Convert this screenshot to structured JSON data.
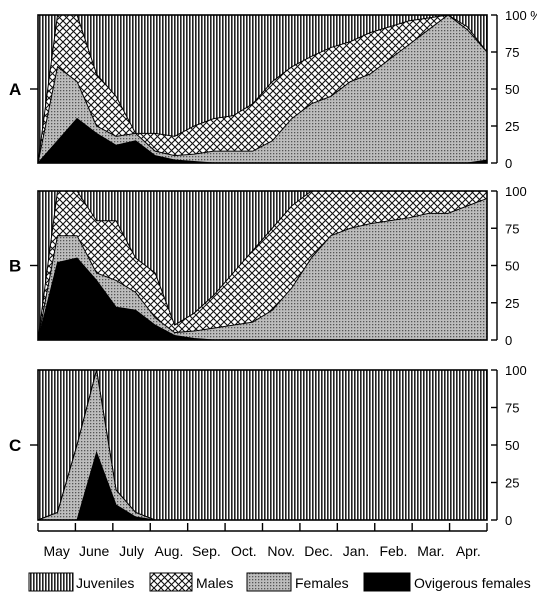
{
  "chart_data": [
    {
      "panel": "A",
      "type": "area",
      "stacked": true,
      "x": [
        "May",
        "",
        "June",
        "",
        "July",
        "",
        "Aug.",
        "",
        "Sep.",
        "",
        "Oct.",
        "",
        "Nov.",
        "",
        "Dec.",
        "",
        "Jan.",
        "",
        "Feb.",
        "",
        "Mar.",
        "",
        "Apr.",
        ""
      ],
      "series": [
        {
          "name": "Ovigerous females",
          "values": [
            0,
            15,
            30,
            20,
            12,
            15,
            5,
            2,
            1,
            0,
            0,
            0,
            0,
            0,
            0,
            0,
            0,
            0,
            0,
            0,
            0,
            0,
            0,
            2
          ]
        },
        {
          "name": "Females",
          "values": [
            0,
            65,
            55,
            25,
            18,
            20,
            8,
            5,
            6,
            8,
            8,
            8,
            15,
            30,
            40,
            45,
            55,
            60,
            70,
            80,
            90,
            100,
            90,
            75
          ]
        },
        {
          "name": "Males",
          "values": [
            0,
            100,
            100,
            60,
            45,
            20,
            20,
            18,
            25,
            30,
            32,
            40,
            55,
            65,
            72,
            78,
            82,
            88,
            92,
            96,
            98,
            100,
            92,
            75
          ]
        }
      ],
      "ylim": [
        0,
        100
      ],
      "yticks": [
        0,
        25,
        50,
        75,
        100
      ],
      "ytick_labels": [
        "0",
        "25",
        "50",
        "75",
        "100 %"
      ]
    },
    {
      "panel": "B",
      "type": "area",
      "stacked": true,
      "x": [
        "May",
        "",
        "June",
        "",
        "July",
        "",
        "Aug.",
        "",
        "Sep.",
        "",
        "Oct.",
        "",
        "Nov.",
        "",
        "Dec.",
        "",
        "Jan.",
        "",
        "Feb.",
        "",
        "Mar.",
        "",
        "Apr.",
        ""
      ],
      "series": [
        {
          "name": "Ovigerous females",
          "values": [
            0,
            52,
            55,
            40,
            22,
            20,
            10,
            3,
            1,
            0,
            0,
            0,
            0,
            0,
            0,
            0,
            0,
            0,
            0,
            0,
            0,
            0,
            0,
            0
          ]
        },
        {
          "name": "Females",
          "values": [
            0,
            70,
            70,
            45,
            40,
            32,
            15,
            5,
            6,
            8,
            10,
            12,
            20,
            35,
            55,
            70,
            75,
            78,
            80,
            82,
            85,
            85,
            90,
            95
          ]
        },
        {
          "name": "Males",
          "values": [
            0,
            100,
            100,
            80,
            80,
            55,
            45,
            10,
            18,
            30,
            45,
            60,
            75,
            90,
            100,
            100,
            100,
            100,
            100,
            100,
            100,
            100,
            100,
            100
          ]
        }
      ],
      "ylim": [
        0,
        100
      ],
      "yticks": [
        0,
        25,
        50,
        75,
        100
      ],
      "ytick_labels": [
        "0",
        "25",
        "50",
        "75",
        "100"
      ]
    },
    {
      "panel": "C",
      "type": "area",
      "stacked": true,
      "x": [
        "May",
        "",
        "June",
        "",
        "July",
        "",
        "Aug.",
        "",
        "Sep.",
        "",
        "Oct.",
        "",
        "Nov.",
        "",
        "Dec.",
        "",
        "Jan.",
        "",
        "Feb.",
        "",
        "Mar.",
        "",
        "Apr.",
        ""
      ],
      "series": [
        {
          "name": "Ovigerous females",
          "values": [
            0,
            0,
            0,
            45,
            10,
            2,
            0,
            0,
            0,
            0,
            0,
            0,
            0,
            0,
            0,
            0,
            0,
            0,
            0,
            0,
            0,
            0,
            0,
            0
          ]
        },
        {
          "name": "Females",
          "values": [
            0,
            5,
            50,
            100,
            20,
            5,
            0,
            0,
            0,
            0,
            0,
            0,
            0,
            0,
            0,
            0,
            0,
            0,
            0,
            0,
            0,
            0,
            0,
            0
          ]
        },
        {
          "name": "Males",
          "values": [
            0,
            5,
            50,
            100,
            20,
            5,
            0,
            0,
            0,
            0,
            0,
            0,
            0,
            0,
            0,
            0,
            0,
            0,
            0,
            0,
            0,
            0,
            0,
            0
          ]
        }
      ],
      "ylim": [
        0,
        100
      ],
      "yticks": [
        0,
        25,
        50,
        75,
        100
      ],
      "ytick_labels": [
        "0",
        "25",
        "50",
        "75",
        "100"
      ]
    }
  ],
  "x_tick_labels": [
    "May",
    "June",
    "July",
    "Aug.",
    "Sep.",
    "Oct.",
    "Nov.",
    "Dec.",
    "Jan.",
    "Feb.",
    "Mar.",
    "Apr."
  ],
  "legend": [
    {
      "label": "Juveniles",
      "pattern": "vertical-lines"
    },
    {
      "label": "Males",
      "pattern": "cross-hatch"
    },
    {
      "label": "Females",
      "pattern": "dense-dots"
    },
    {
      "label": "Ovigerous females",
      "pattern": "solid"
    }
  ],
  "legend_placement": "bottom"
}
